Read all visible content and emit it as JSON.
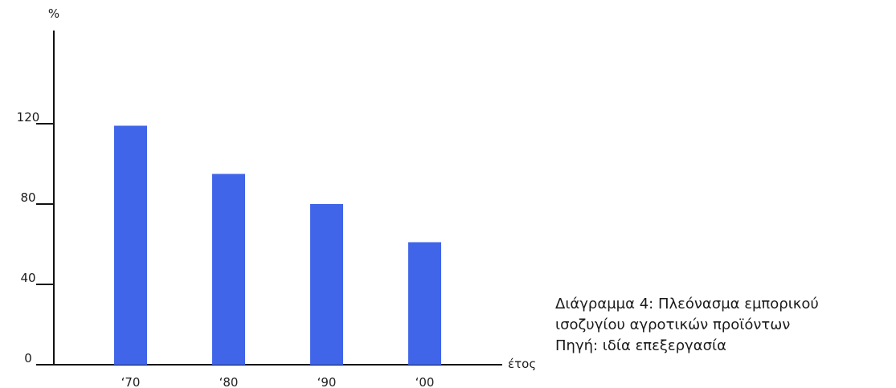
{
  "chart_data": {
    "type": "bar",
    "categories": [
      "‘70",
      "‘80",
      "‘90",
      "‘00"
    ],
    "values": [
      119,
      95,
      80,
      61
    ],
    "ylabel": "%",
    "xlabel": "έτος",
    "yticks": [
      0,
      40,
      80,
      120
    ],
    "ylim": [
      0,
      160
    ],
    "bar_color": "#4165E8",
    "grid": false,
    "legend": "none"
  },
  "caption": {
    "line1": "Διάγραμμα 4: Πλεόνασμα εμπορικού",
    "line2": "ισοζυγίου αγροτικών προϊόντων",
    "line3": "Πηγή: ιδία επεξεργασία"
  }
}
